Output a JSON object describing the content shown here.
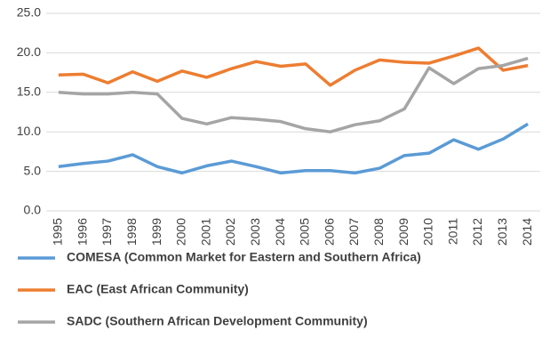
{
  "chart_data": {
    "type": "line",
    "categories": [
      "1995",
      "1996",
      "1997",
      "1998",
      "1999",
      "2000",
      "2001",
      "2002",
      "2003",
      "2004",
      "2005",
      "2006",
      "2007",
      "2008",
      "2009",
      "2010",
      "2011",
      "2012",
      "2013",
      "2014"
    ],
    "series": [
      {
        "name": "COMESA (Common Market for Eastern and Southern Africa)",
        "color": "#5b9bd5",
        "values": [
          5.6,
          6.0,
          6.3,
          7.1,
          5.6,
          4.8,
          5.7,
          6.3,
          5.6,
          4.8,
          5.1,
          5.1,
          4.8,
          5.4,
          7.0,
          7.3,
          9.0,
          7.8,
          9.1,
          11.0
        ]
      },
      {
        "name": "EAC (East African Community)",
        "color": "#ed7d31",
        "values": [
          17.2,
          17.3,
          16.2,
          17.6,
          16.4,
          17.7,
          16.9,
          18.0,
          18.9,
          18.3,
          18.6,
          15.9,
          17.8,
          19.1,
          18.8,
          18.7,
          19.6,
          20.6,
          17.8,
          18.4
        ]
      },
      {
        "name": "SADC (Southern African Development Community)",
        "color": "#a5a5a5",
        "values": [
          15.0,
          14.8,
          14.8,
          15.0,
          14.8,
          11.7,
          11.0,
          11.8,
          11.6,
          11.3,
          10.4,
          10.0,
          10.9,
          11.4,
          12.9,
          18.1,
          16.1,
          18.0,
          18.4,
          19.3
        ]
      }
    ],
    "ylim": [
      0,
      25
    ],
    "yticks": [
      {
        "value": 0,
        "label": "0.0"
      },
      {
        "value": 5,
        "label": "5.0"
      },
      {
        "value": 10,
        "label": "10.0"
      },
      {
        "value": 15,
        "label": "15.0"
      },
      {
        "value": 20,
        "label": "20.0"
      },
      {
        "value": 25,
        "label": "25.0"
      }
    ],
    "grid": true,
    "legend": "bottom"
  }
}
